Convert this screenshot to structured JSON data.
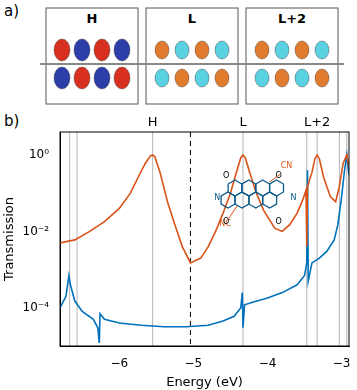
{
  "panel_a": {
    "label": "a)",
    "orbitals": [
      "H",
      "L",
      "L+2"
    ]
  },
  "chart_data": {
    "type": "line",
    "panel_label": "b)",
    "x_label": "Energy (eV)",
    "y_label": "Transmission",
    "log": "y",
    "grid": false,
    "xlim": [
      -6.8,
      -2.9
    ],
    "xticks": [
      {
        "value": -6,
        "label": "−6"
      },
      {
        "value": -5,
        "label": "−5"
      },
      {
        "value": -4,
        "label": "−4"
      },
      {
        "value": -3,
        "label": "−3"
      }
    ],
    "ylim": [
      1e-05,
      4
    ],
    "yticks": [
      {
        "value": 0.0001,
        "label": "10⁻⁴"
      },
      {
        "value": 0.01,
        "label": "10⁻²"
      },
      {
        "value": 1,
        "label": "10⁰"
      }
    ],
    "levels": [
      -6.67,
      -6.57,
      -5.55,
      -4.33,
      -3.47,
      -3.33,
      -3.03,
      -2.93
    ],
    "fermi_level": -5.04,
    "level_labels": [
      {
        "text": "H",
        "x": -5.55
      },
      {
        "text": "L",
        "x": -4.33
      },
      {
        "text": "L+2",
        "x": -3.33
      }
    ],
    "inset_labels": [
      "CN",
      "NC",
      "N",
      "N",
      "O",
      "O",
      "O",
      "O"
    ],
    "series": [
      {
        "color": "#d95319",
        "line_style": "solid",
        "x": [
          -6.8,
          -6.6,
          -6.4,
          -6.2,
          -6.0,
          -5.85,
          -5.75,
          -5.65,
          -5.58,
          -5.55,
          -5.52,
          -5.45,
          -5.35,
          -5.25,
          -5.15,
          -5.04,
          -4.9,
          -4.8,
          -4.7,
          -4.6,
          -4.5,
          -4.42,
          -4.36,
          -4.33,
          -4.3,
          -4.24,
          -4.15,
          -4.05,
          -3.9,
          -3.8,
          -3.7,
          -3.6,
          -3.52,
          -3.48,
          -3.47,
          -3.46,
          -3.4,
          -3.36,
          -3.33,
          -3.3,
          -3.24,
          -3.15,
          -3.08,
          -3.03,
          -2.98,
          -2.93,
          -2.9
        ],
        "values": [
          0.005,
          0.006,
          0.01,
          0.018,
          0.04,
          0.1,
          0.25,
          0.6,
          0.95,
          1.0,
          0.9,
          0.35,
          0.06,
          0.015,
          0.004,
          0.0015,
          0.002,
          0.004,
          0.01,
          0.03,
          0.1,
          0.35,
          0.85,
          1.0,
          0.85,
          0.35,
          0.1,
          0.035,
          0.012,
          0.01,
          0.015,
          0.03,
          0.07,
          0.12,
          0.004,
          0.15,
          0.35,
          0.8,
          1.0,
          0.8,
          0.25,
          0.08,
          0.06,
          0.15,
          0.6,
          1.0,
          0.5
        ]
      },
      {
        "color": "#0072bd",
        "line_style": "solid",
        "x": [
          -6.8,
          -6.72,
          -6.68,
          -6.66,
          -6.6,
          -6.5,
          -6.35,
          -6.29,
          -6.27,
          -6.26,
          -6.2,
          -6.0,
          -5.7,
          -5.4,
          -5.1,
          -4.8,
          -4.6,
          -4.45,
          -4.36,
          -4.34,
          -4.33,
          -4.31,
          -4.2,
          -4.0,
          -3.8,
          -3.6,
          -3.5,
          -3.47,
          -3.46,
          -3.45,
          -3.4,
          -3.3,
          -3.2,
          -3.1,
          -3.05,
          -3.0,
          -2.96,
          -2.93,
          -2.9
        ],
        "values": [
          0.0001,
          0.0002,
          0.0007,
          0.0004,
          0.00015,
          8e-05,
          5e-05,
          3e-05,
          1.2e-05,
          7e-05,
          5e-05,
          4e-05,
          3.5e-05,
          3.2e-05,
          3.2e-05,
          3.5e-05,
          4.5e-05,
          6e-05,
          0.0001,
          0.00025,
          3e-05,
          0.00012,
          0.00014,
          0.00018,
          0.00025,
          0.0004,
          0.0007,
          0.0015,
          0.4,
          0.0005,
          0.0015,
          0.002,
          0.003,
          0.006,
          0.015,
          0.08,
          0.4,
          1.0,
          0.3
        ]
      }
    ]
  }
}
